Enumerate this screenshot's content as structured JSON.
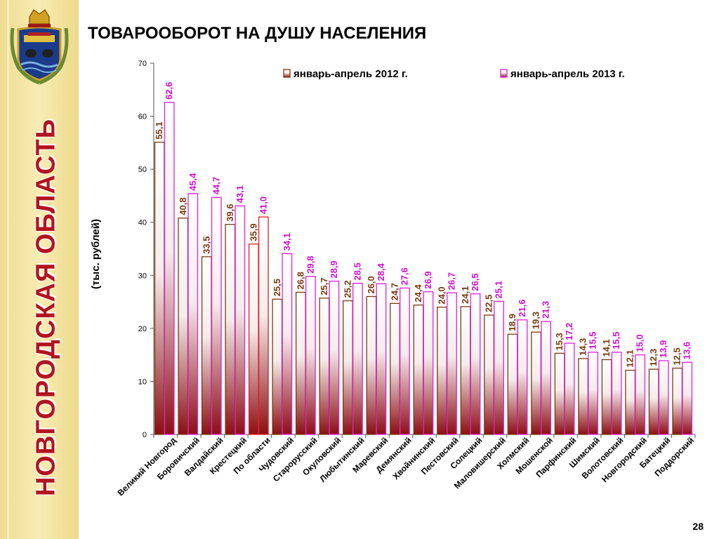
{
  "sidebar": {
    "region_title": "НОВГОРОДСКАЯ ОБЛАСТЬ"
  },
  "header": {
    "title": "ТОВАРООБОРОТ НА ДУШУ НАСЕЛЕНИЯ"
  },
  "footer": {
    "page_number": "28"
  },
  "colors": {
    "series_2012_border": "#7a3a10",
    "series_2013_border": "#e020e0",
    "series_2012_label": "#7a3a10",
    "series_2013_label": "#d010d0",
    "highlight_border": "#e02020",
    "bar_fill_top": "#ffffff",
    "bar_fill_bottom": "#8c0e14",
    "region_title": "#b01420"
  },
  "chart_data": {
    "type": "bar",
    "ylabel": "(тыс. рублей)",
    "ylim": [
      0,
      70
    ],
    "yticks": [
      0,
      10,
      20,
      30,
      40,
      50,
      60,
      70
    ],
    "grid": false,
    "legend_position": "top",
    "highlight_category": "По области",
    "categories": [
      "Великий Новгород",
      "Боровичский",
      "Валдайский",
      "Крестецкий",
      "По области",
      "Чудовский",
      "Старорусский",
      "Окуловский",
      "Любытинский",
      "Маревский",
      "Демянский",
      "Хвойнинский",
      "Пестовский",
      "Солецкий",
      "Маловишерский",
      "Холмский",
      "Мошенской",
      "Парфинский",
      "Шимский",
      "Волотовский",
      "Новгородский",
      "Батецкий",
      "Поддорский"
    ],
    "series": [
      {
        "name": "январь-апрель 2012 г.",
        "values": [
          55.1,
          40.8,
          33.5,
          39.6,
          35.9,
          25.5,
          26.8,
          25.7,
          25.2,
          26.0,
          24.7,
          24.4,
          24.0,
          24.1,
          22.5,
          18.9,
          19.3,
          15.3,
          14.3,
          14.1,
          12.1,
          12.3,
          12.5
        ],
        "labels": [
          "55,1",
          "40,8",
          "33,5",
          "39,6",
          "35,9",
          "25,5",
          "26,8",
          "25,7",
          "25,2",
          "26,0",
          "24,7",
          "24,4",
          "24,0",
          "24,1",
          "22,5",
          "18,9",
          "19,3",
          "15,3",
          "14,3",
          "14,1",
          "12,1",
          "12,3",
          "12,5"
        ]
      },
      {
        "name": "январь-апрель 2013 г.",
        "values": [
          62.6,
          45.4,
          44.7,
          43.1,
          41.0,
          34.1,
          29.8,
          28.9,
          28.5,
          28.4,
          27.6,
          26.9,
          26.7,
          26.5,
          25.1,
          21.6,
          21.3,
          17.2,
          15.5,
          15.5,
          15.0,
          13.9,
          13.6
        ],
        "labels": [
          "62,6",
          "45,4",
          "44,7",
          "43,1",
          "41,0",
          "34,1",
          "29,8",
          "28,9",
          "28,5",
          "28,4",
          "27,6",
          "26,9",
          "26,7",
          "26,5",
          "25,1",
          "21,6",
          "21,3",
          "17,2",
          "15,5",
          "15,5",
          "15,0",
          "13,9",
          "13,6"
        ]
      }
    ]
  }
}
